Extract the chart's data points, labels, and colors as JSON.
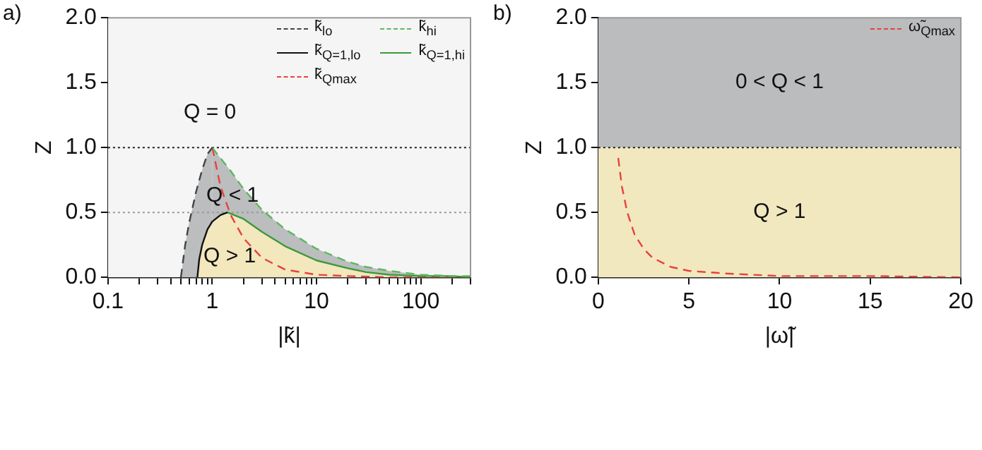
{
  "chart_data": [
    {
      "type": "line",
      "annotations": [
        "a)",
        "Q = 0",
        "Q < 1",
        "Q > 1"
      ],
      "xlabel": "|k̃|",
      "ylabel": "Z",
      "log": "x",
      "grid": false,
      "legend": "top right",
      "marker": "none",
      "xlim": [
        0.1,
        300
      ],
      "xticks": [
        0.1,
        {
          "value": 0.2,
          "label": null
        },
        {
          "value": 0.3,
          "label": null
        },
        {
          "value": 0.4,
          "label": null
        },
        {
          "value": 0.5,
          "label": null
        },
        {
          "value": 0.6,
          "label": null
        },
        {
          "value": 0.7,
          "label": null
        },
        {
          "value": 0.8,
          "label": null
        },
        {
          "value": 0.9,
          "label": null
        },
        1,
        {
          "value": 2,
          "label": null
        },
        {
          "value": 3,
          "label": null
        },
        {
          "value": 4,
          "label": null
        },
        {
          "value": 5,
          "label": null
        },
        {
          "value": 6,
          "label": null
        },
        {
          "value": 7,
          "label": null
        },
        {
          "value": 8,
          "label": null
        },
        {
          "value": 9,
          "label": null
        },
        10,
        {
          "value": 20,
          "label": null
        },
        {
          "value": 30,
          "label": null
        },
        {
          "value": 40,
          "label": null
        },
        {
          "value": 50,
          "label": null
        },
        {
          "value": 60,
          "label": null
        },
        {
          "value": 70,
          "label": null
        },
        {
          "value": 80,
          "label": null
        },
        {
          "value": 90,
          "label": null
        },
        100,
        {
          "value": 200,
          "label": null
        },
        {
          "value": 300,
          "label": null
        }
      ],
      "ylim": [
        0,
        2
      ],
      "yticks": [
        {
          "value": 0,
          "label": "0.0"
        },
        {
          "value": 0.5,
          "label": "0.5"
        },
        {
          "value": 1,
          "label": "1.0"
        },
        {
          "value": 1.5,
          "label": "1.5"
        },
        {
          "value": 2,
          "label": "2.0"
        }
      ],
      "ref_lines": [
        {
          "axis": "y",
          "value": 1,
          "color": "#222222",
          "line_style": "dotted"
        },
        {
          "axis": "y",
          "value": 0.5,
          "color": "#999999",
          "line_style": "dotted"
        }
      ],
      "series": [
        {
          "name": "k̃$_{lo}$",
          "color": "#444444",
          "line_style": "dashed",
          "x": [
            0.5,
            0.55,
            0.6,
            0.7,
            0.8,
            0.9,
            1
          ],
          "values": [
            0,
            0.25,
            0.42,
            0.66,
            0.83,
            0.95,
            1
          ]
        },
        {
          "name": "k̃$_{hi}$",
          "color": "#5cb85c",
          "line_style": "dashed",
          "x": [
            1,
            1.5,
            2,
            3,
            5,
            10,
            20,
            30,
            50,
            100,
            200,
            300
          ],
          "values": [
            1,
            0.82,
            0.68,
            0.52,
            0.37,
            0.22,
            0.12,
            0.08,
            0.05,
            0.02,
            0.01,
            0.01
          ]
        },
        {
          "name": "k̃$_{Q=1,lo}$",
          "color": "#111111",
          "line_style": "solid",
          "x": [
            0.72,
            0.75,
            0.8,
            0.9,
            1,
            1.2,
            1.4
          ],
          "values": [
            0,
            0.14,
            0.25,
            0.37,
            0.43,
            0.48,
            0.5
          ]
        },
        {
          "name": "k̃$_{Q=1,hi}$",
          "color": "#3a9a3a",
          "line_style": "solid",
          "x": [
            1.4,
            2,
            3,
            5,
            10,
            20,
            30,
            50,
            100,
            200,
            300
          ],
          "values": [
            0.5,
            0.45,
            0.35,
            0.24,
            0.13,
            0.07,
            0.04,
            0.02,
            0.01,
            0.01,
            0
          ]
        },
        {
          "name": "k̃$_{Qmax}$",
          "color": "#e8413c",
          "line_style": "dashed",
          "x": [
            1,
            1.2,
            1.5,
            2,
            3,
            5,
            10,
            20,
            50,
            100,
            300
          ],
          "values": [
            1,
            0.7,
            0.48,
            0.3,
            0.15,
            0.06,
            0.02,
            0.01,
            0,
            0,
            0
          ]
        }
      ]
    },
    {
      "type": "line",
      "annotations": [
        "b)"
      ],
      "xlabel": "|ω̃|",
      "ylabel": "Z",
      "grid": false,
      "legend": "top right",
      "marker": "none",
      "xlim": [
        0,
        20
      ],
      "xticks": [
        0,
        5,
        10,
        15,
        20
      ],
      "ylim": [
        0,
        2
      ],
      "yticks": [
        {
          "value": 0,
          "label": "0.0"
        },
        {
          "value": 0.5,
          "label": "0.5"
        },
        {
          "value": 1,
          "label": "1.0"
        },
        {
          "value": 1.5,
          "label": "1.5"
        },
        {
          "value": 2,
          "label": "2.0"
        }
      ],
      "bands": [
        {
          "axis": "y",
          "from": 1,
          "to": 2,
          "label": "0 < Q < 1",
          "color": "#babcbd"
        },
        {
          "axis": "y",
          "from": 0,
          "to": 1,
          "label": "Q > 1",
          "color": "#f2e8c0"
        }
      ],
      "ref_lines": [
        {
          "axis": "y",
          "value": 1,
          "color": "#222222",
          "line_style": "dotted"
        }
      ],
      "series": [
        {
          "name": "ω̃$_{Qmax}$",
          "color": "#e8413c",
          "line_style": "dashed",
          "x": [
            1.1,
            1.3,
            1.6,
            2,
            2.5,
            3,
            4,
            5,
            7,
            10,
            15,
            20
          ],
          "values": [
            0.92,
            0.7,
            0.5,
            0.33,
            0.22,
            0.15,
            0.08,
            0.05,
            0.03,
            0.01,
            0.01,
            0
          ]
        }
      ]
    }
  ]
}
